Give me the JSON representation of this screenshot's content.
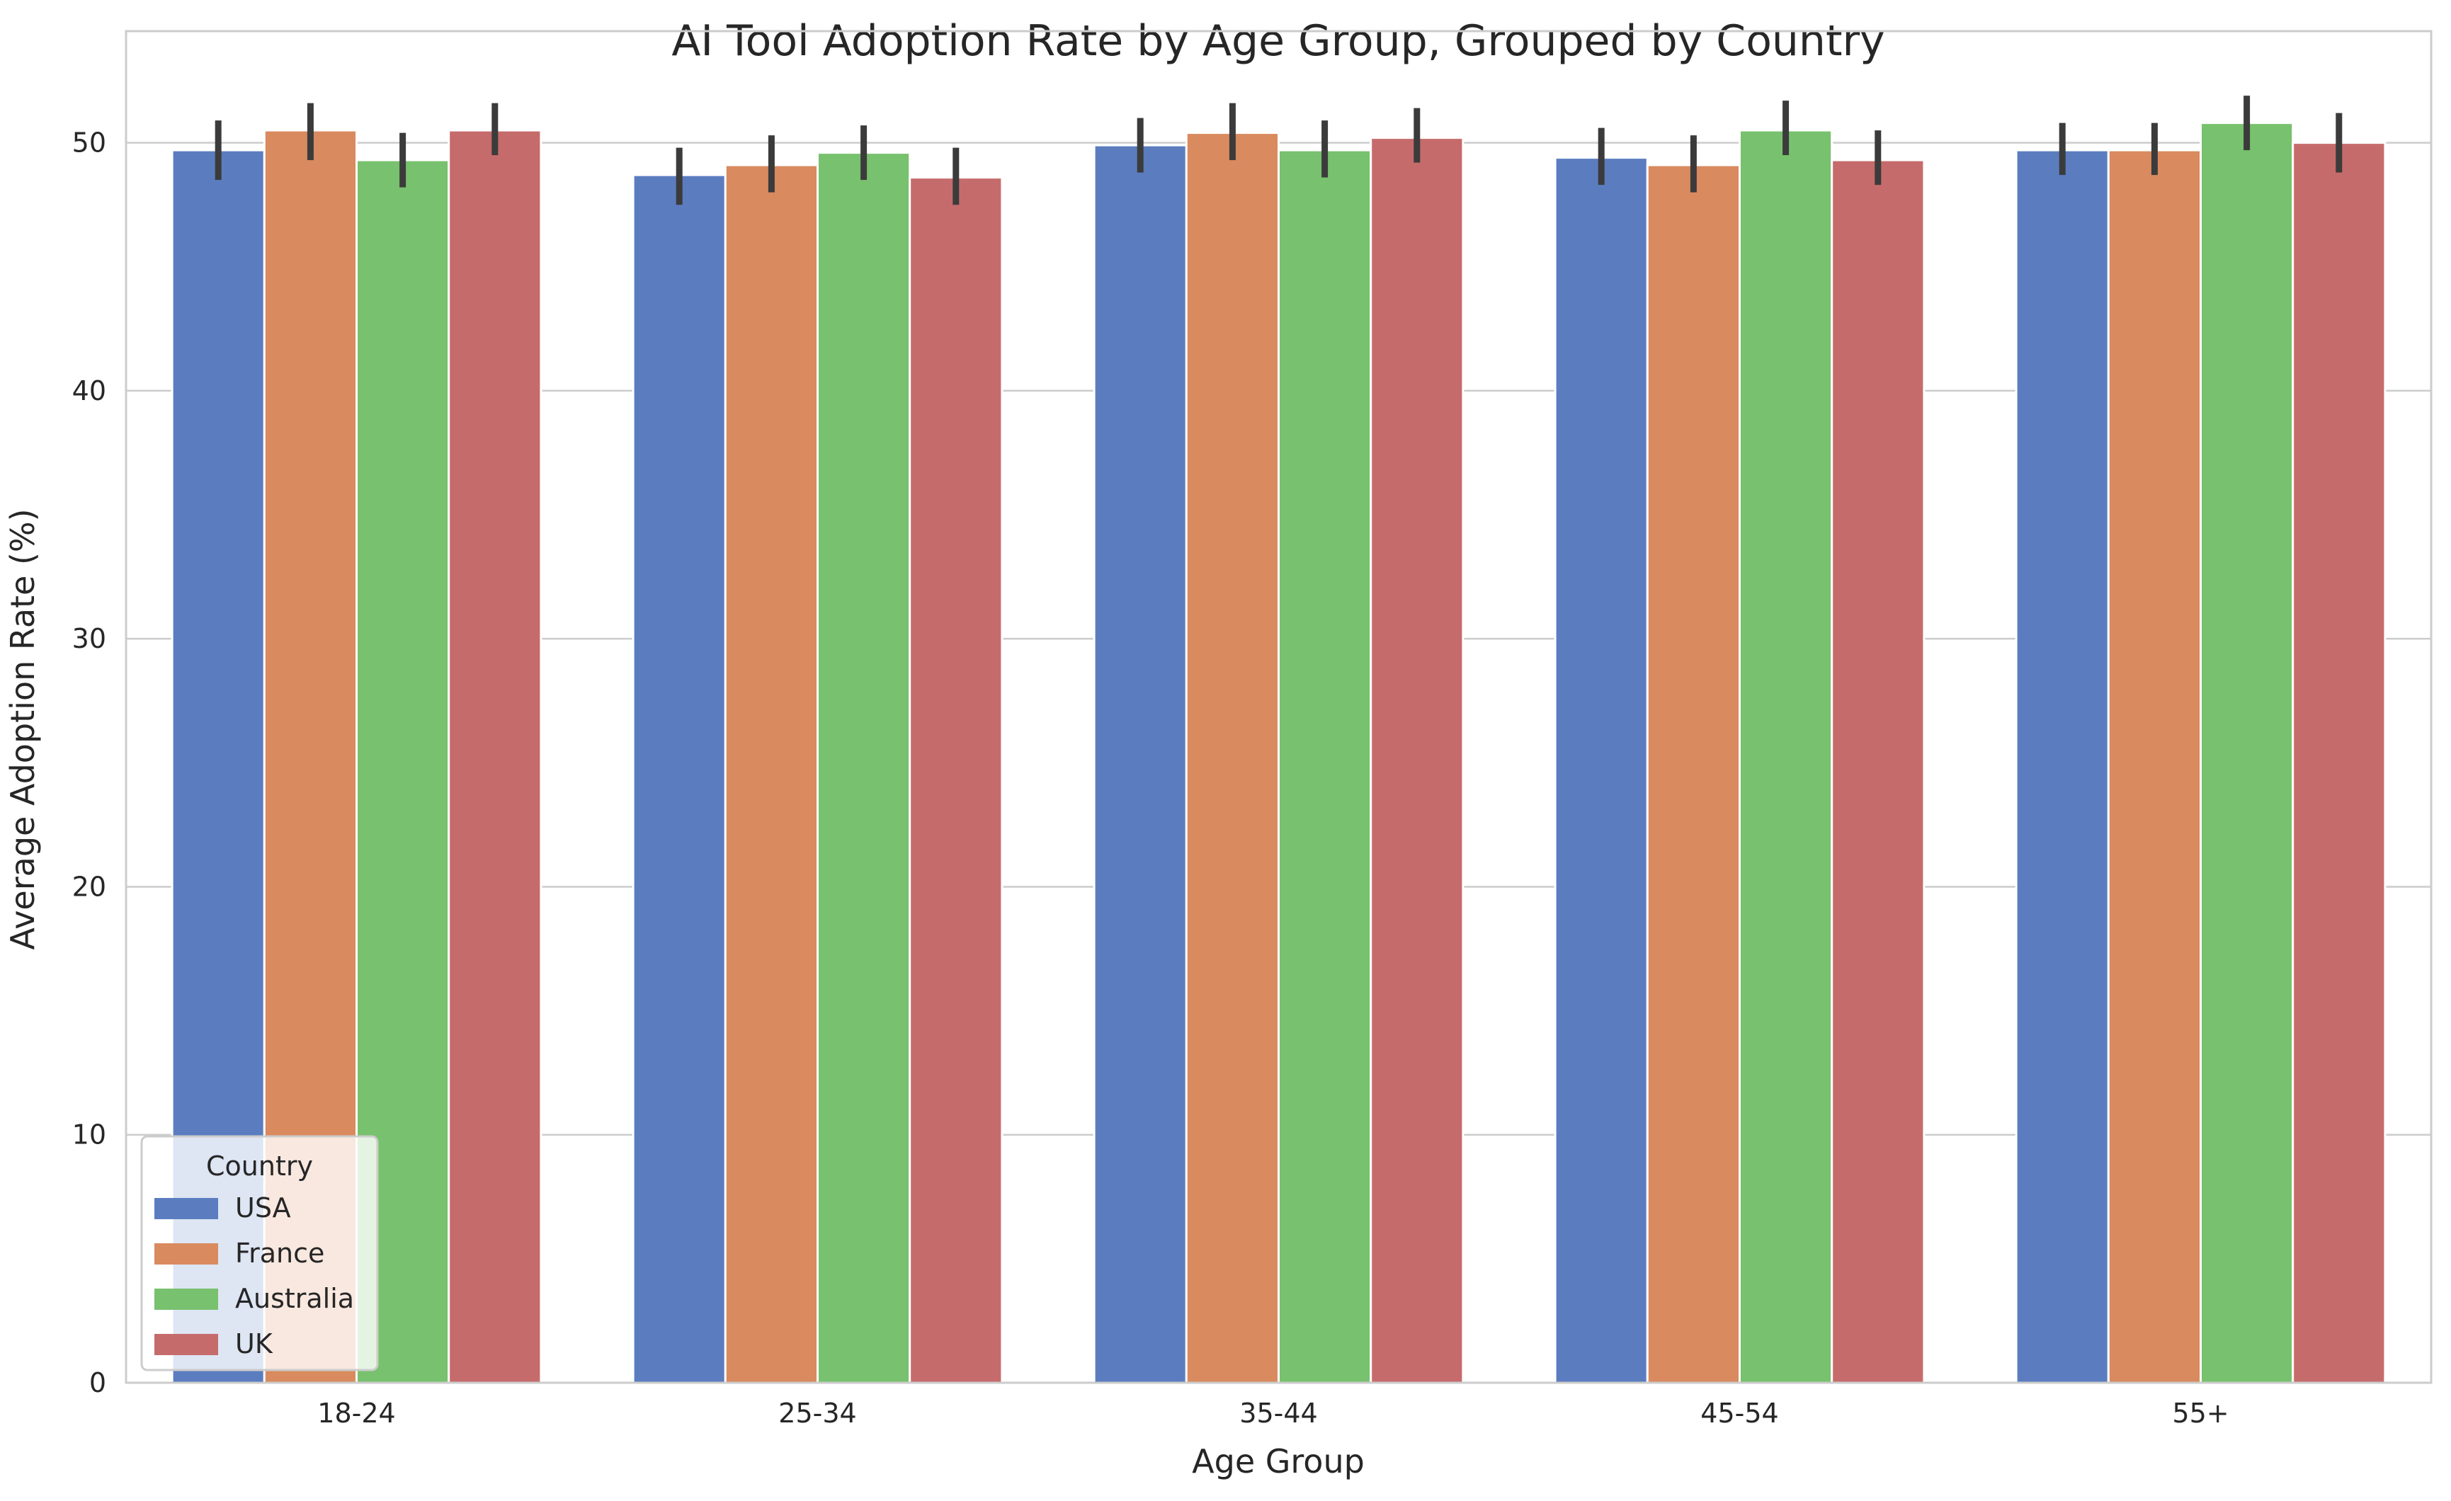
{
  "chart_data": {
    "type": "bar",
    "title": "AI Tool Adoption Rate by Age Group, Grouped by Country",
    "xlabel": "Age Group",
    "ylabel": "Average Adoption Rate (%)",
    "ylim": [
      0,
      54.5
    ],
    "yticks": [
      0,
      10,
      20,
      30,
      40,
      50
    ],
    "grid": true,
    "categories": [
      "18-24",
      "25-34",
      "35-44",
      "45-54",
      "55+"
    ],
    "legend": {
      "title": "Country",
      "position": "lower-left"
    },
    "series": [
      {
        "name": "USA",
        "color": "#5b7dc0",
        "values": [
          49.7,
          48.7,
          49.9,
          49.4,
          49.7
        ],
        "ci_low": [
          48.5,
          47.5,
          48.8,
          48.3,
          48.7
        ],
        "ci_high": [
          50.9,
          49.8,
          51.0,
          50.6,
          50.8
        ]
      },
      {
        "name": "France",
        "color": "#d98a5f",
        "values": [
          50.5,
          49.1,
          50.4,
          49.1,
          49.7
        ],
        "ci_low": [
          49.3,
          48.0,
          49.3,
          48.0,
          48.7
        ],
        "ci_high": [
          51.6,
          50.3,
          51.6,
          50.3,
          50.8
        ]
      },
      {
        "name": "Australia",
        "color": "#78c16e",
        "values": [
          49.3,
          49.6,
          49.7,
          50.5,
          50.8
        ],
        "ci_low": [
          48.2,
          48.5,
          48.6,
          49.5,
          49.7
        ],
        "ci_high": [
          50.4,
          50.7,
          50.9,
          51.7,
          51.9
        ]
      },
      {
        "name": "UK",
        "color": "#c66b6b",
        "values": [
          50.5,
          48.6,
          50.2,
          49.3,
          50.0
        ],
        "ci_low": [
          49.5,
          47.5,
          49.2,
          48.3,
          48.8
        ],
        "ci_high": [
          51.6,
          49.8,
          51.4,
          50.5,
          51.2
        ]
      }
    ]
  }
}
